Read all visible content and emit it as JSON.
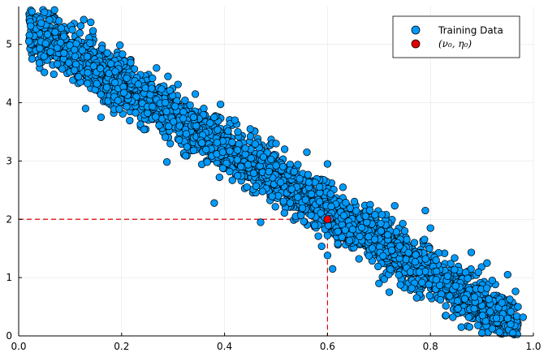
{
  "chart_data": {
    "type": "scatter",
    "title": "",
    "xlabel": "",
    "ylabel": "",
    "xlim": [
      0,
      1
    ],
    "ylim": [
      0,
      5.65
    ],
    "x_ticks": [
      0,
      0.2,
      0.4,
      0.6,
      0.8,
      1.0
    ],
    "x_tick_labels": [
      "0.0",
      "0.2",
      "0.4",
      "0.6",
      "0.8",
      "1.0"
    ],
    "y_ticks": [
      0,
      1,
      2,
      3,
      4,
      5
    ],
    "y_tick_labels": [
      "0",
      "1",
      "2",
      "3",
      "4",
      "5"
    ],
    "grid": true,
    "legend_position": "top-right",
    "series": [
      {
        "name": "Training Data",
        "color": "#009AFA",
        "trend": {
          "intercept": 5.4,
          "slope": -5.4,
          "spread": 0.22
        },
        "x_range": [
          0.02,
          0.97
        ],
        "points": [
          [
            0.02,
            5.05
          ],
          [
            0.05,
            5.55
          ],
          [
            0.06,
            5.42
          ],
          [
            0.04,
            4.68
          ],
          [
            0.05,
            4.52
          ],
          [
            0.14,
            5.38
          ],
          [
            0.13,
            3.9
          ],
          [
            0.16,
            3.75
          ],
          [
            0.21,
            4.42
          ],
          [
            0.26,
            4.42
          ],
          [
            0.29,
            4.45
          ],
          [
            0.34,
            3.75
          ],
          [
            0.38,
            2.28
          ],
          [
            0.42,
            3.7
          ],
          [
            0.45,
            3.55
          ],
          [
            0.47,
            1.95
          ],
          [
            0.5,
            3.3
          ],
          [
            0.56,
            3.15
          ],
          [
            0.6,
            2.95
          ],
          [
            0.6,
            1.38
          ],
          [
            0.61,
            1.15
          ],
          [
            0.63,
            2.55
          ],
          [
            0.7,
            0.9
          ],
          [
            0.72,
            0.75
          ],
          [
            0.75,
            1.8
          ],
          [
            0.79,
            2.15
          ],
          [
            0.8,
            1.85
          ],
          [
            0.83,
            0.35
          ],
          [
            0.86,
            0.15
          ],
          [
            0.9,
            0.05
          ],
          [
            0.91,
            1.25
          ],
          [
            0.92,
            0.95
          ],
          [
            0.95,
            1.05
          ],
          [
            0.95,
            0.3
          ],
          [
            0.96,
            0.05
          ],
          [
            0.97,
            0.5
          ],
          [
            0.98,
            0.32
          ]
        ]
      },
      {
        "name": "(ν₀, η₀)",
        "color": "#E30000",
        "points": [
          [
            0.6,
            2.0
          ]
        ]
      }
    ],
    "reference_lines": {
      "x": 0.6,
      "y": 2.0,
      "color": "#E30000",
      "style": "dashed"
    }
  },
  "legend": {
    "training_label": "Training Data",
    "point_label": "(ν₀, η₀)"
  }
}
